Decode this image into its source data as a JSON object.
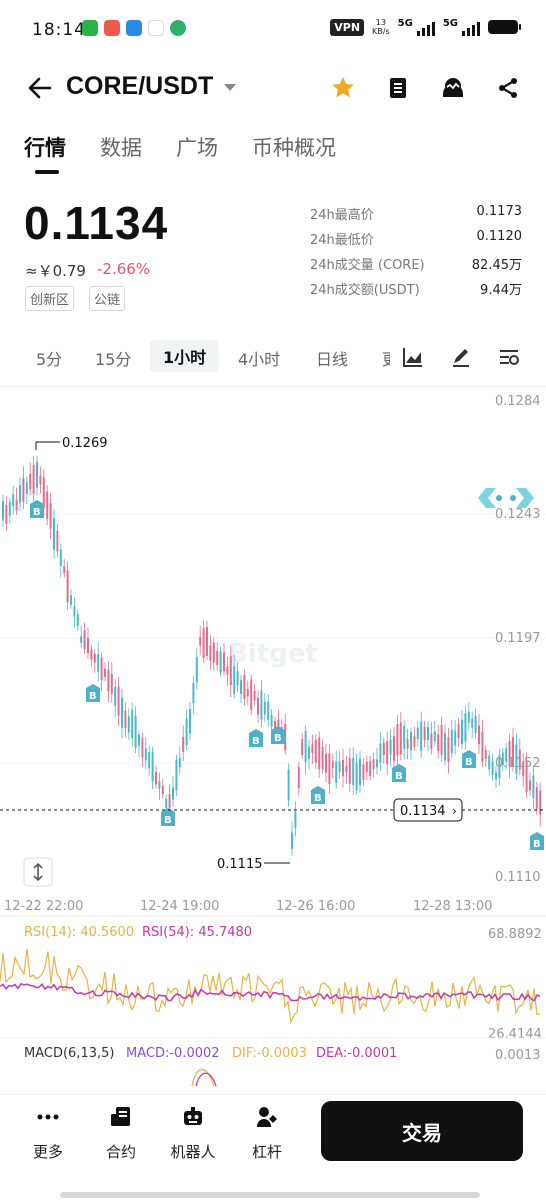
{
  "status_bar": {
    "time": "18:14",
    "vpn": "VPN",
    "net_speed_value": "13",
    "net_speed_unit": "KB/s",
    "signal1": "5G",
    "signal2": "5G"
  },
  "header": {
    "pair": "CORE/USDT",
    "icons": [
      "back-arrow-icon",
      "star-icon",
      "notebook-icon",
      "bot-face-icon",
      "share-icon"
    ],
    "star_color": "#f5a623"
  },
  "tabs": [
    "行情",
    "数据",
    "广场",
    "币种概况"
  ],
  "price": {
    "last": "0.1134",
    "cny": "≈￥0.79",
    "change": "-2.66%",
    "tags": [
      "创新区",
      "公链"
    ]
  },
  "stats": [
    {
      "label": "24h最高价",
      "value": "0.1173"
    },
    {
      "label": "24h最低价",
      "value": "0.1120"
    },
    {
      "label": "24h成交量 (CORE)",
      "value": "82.45万"
    },
    {
      "label": "24h成交额(USDT)",
      "value": "9.44万"
    }
  ],
  "intervals": [
    "5分",
    "15分",
    "1小时",
    "4小时",
    "日线",
    "更"
  ],
  "active_interval": "1小时",
  "chart": {
    "watermark": "Bitget",
    "y_ticks": [
      "0.1284",
      "0.1243",
      "0.1197",
      "0.1152",
      "0.1110"
    ],
    "x_ticks": [
      "12-22 22:00",
      "12-24 19:00",
      "12-26 16:00",
      "12-28 13:00"
    ],
    "high_label": "0.1269",
    "low_label": "0.1115",
    "current_price_label": "0.1134",
    "buy_marker": "B",
    "rsi": {
      "label14": "RSI(14): 40.5600",
      "label54": "RSI(54): 45.7480",
      "top": "68.8892",
      "bottom": "26.4144"
    },
    "macd": {
      "label": "MACD(6,13,5)",
      "macd": "MACD:-0.0002",
      "dif": "DIF:-0.0003",
      "dea": "DEA:-0.0001",
      "top": "0.0013"
    },
    "colors": {
      "up": "#4fb8c8",
      "down": "#df6f8f",
      "rsi14": "#e6b34a",
      "rsi54": "#c33aa3",
      "macd": "#8a4fd1",
      "dif": "#e6b34a",
      "dea": "#c33aa3",
      "marker": "#4fb0c8"
    }
  },
  "bottom_nav": {
    "items": [
      {
        "label": "更多",
        "icon": "more-dots-icon"
      },
      {
        "label": "合约",
        "icon": "contract-icon"
      },
      {
        "label": "机器人",
        "icon": "robot-icon"
      },
      {
        "label": "杠杆",
        "icon": "leverage-icon"
      }
    ],
    "trade": "交易"
  }
}
